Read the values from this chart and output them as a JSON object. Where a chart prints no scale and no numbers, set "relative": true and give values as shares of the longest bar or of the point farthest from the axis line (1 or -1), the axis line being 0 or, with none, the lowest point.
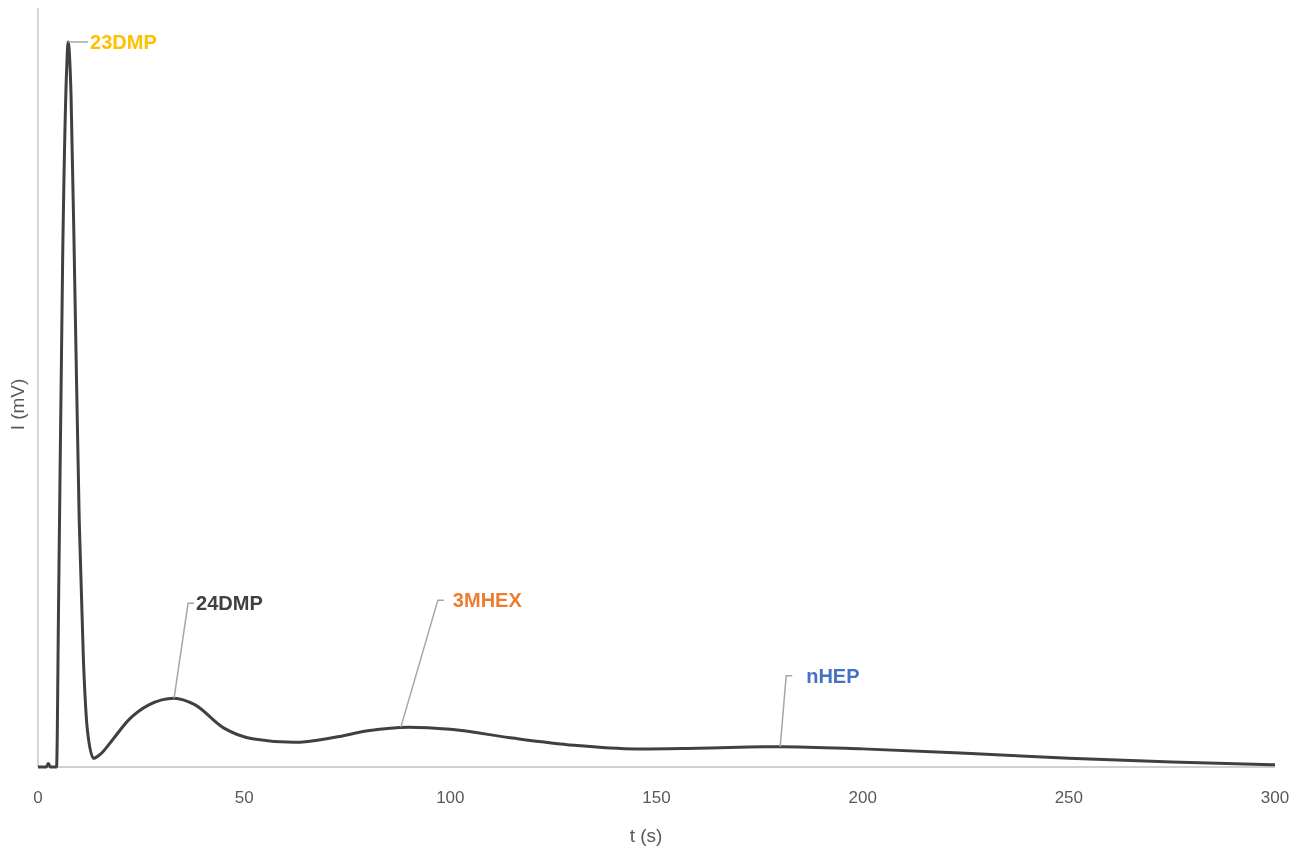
{
  "chart_data": {
    "type": "line",
    "relative": true,
    "xlabel": "t (s)",
    "ylabel": "I (mV)",
    "xlim": [
      0,
      300
    ],
    "xticks": [
      0,
      50,
      100,
      150,
      200,
      250,
      300
    ],
    "line_style": "solid",
    "series": [
      {
        "color": "#404040",
        "x": [
          0,
          2,
          2.5,
          3,
          4.5,
          5,
          6,
          7,
          7.3,
          8,
          9,
          10,
          11,
          12,
          13.5,
          15,
          18,
          22,
          27,
          33,
          38,
          45,
          52,
          62,
          72,
          80,
          90,
          100,
          115,
          130,
          145,
          160,
          180,
          200,
          225,
          250,
          275,
          300
        ],
        "values": [
          0,
          0,
          0.005,
          0,
          0,
          0.23,
          0.71,
          0.97,
          1,
          0.93,
          0.64,
          0.34,
          0.15,
          0.05,
          0.012,
          0.017,
          0.037,
          0.065,
          0.086,
          0.095,
          0.086,
          0.054,
          0.039,
          0.034,
          0.041,
          0.05,
          0.055,
          0.052,
          0.04,
          0.03,
          0.025,
          0.026,
          0.028,
          0.025,
          0.019,
          0.012,
          0.007,
          0.003
        ]
      }
    ],
    "annotations": [
      {
        "text": "23DMP",
        "x": 7.3,
        "y": 1
      },
      {
        "text": "24DMP",
        "x": 33,
        "y": 0.095
      },
      {
        "text": "3MHEX",
        "x": 88,
        "y": 0.055
      },
      {
        "text": "nHEP",
        "x": 180,
        "y": 0.028
      }
    ]
  }
}
